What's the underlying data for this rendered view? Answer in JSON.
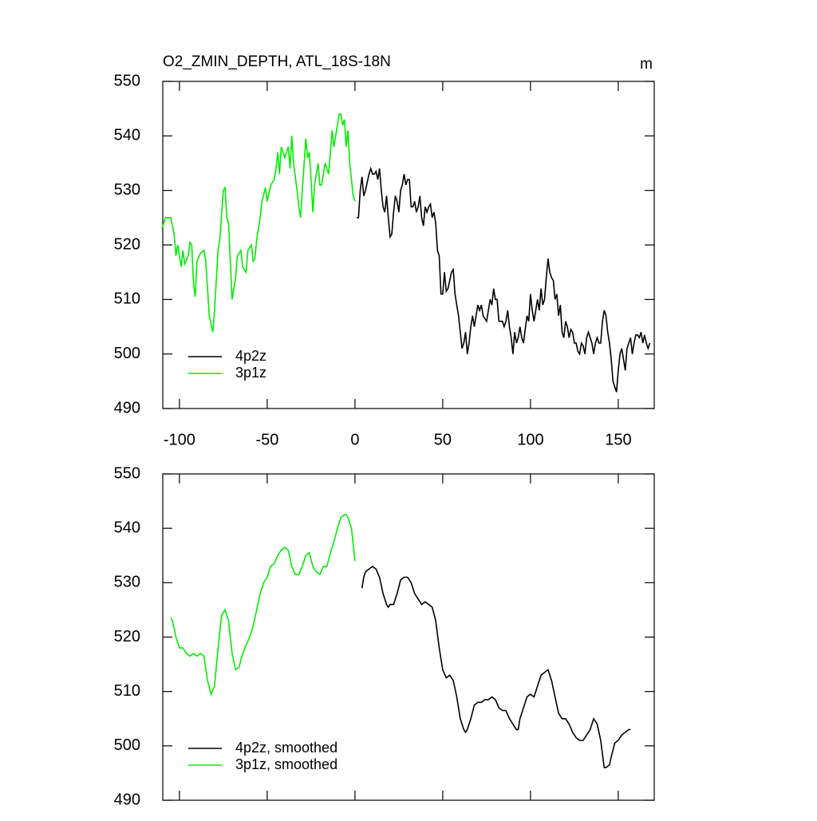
{
  "chart_data": [
    {
      "type": "line",
      "title": "O2_ZMIN_DEPTH, ATL_18S-18N",
      "units": "m",
      "xlim": [
        -109.5,
        170.5
      ],
      "xticks": [
        -100,
        -50,
        0,
        50,
        100,
        150
      ],
      "xtick_labels": true,
      "ylim": [
        490,
        550
      ],
      "yticks": [
        490,
        500,
        510,
        520,
        530,
        540,
        550
      ],
      "legend": "lower left",
      "series": [
        {
          "name": "4p2z",
          "color": "#000000",
          "x": [
            1,
            2,
            3,
            4,
            5,
            6,
            8,
            9,
            10,
            11,
            12,
            13,
            14,
            15,
            16,
            17,
            18,
            19,
            20,
            21,
            22,
            23,
            24,
            25,
            26,
            27,
            28,
            29,
            30,
            31,
            32,
            33,
            34,
            35,
            36,
            37,
            38,
            39,
            40,
            41,
            42,
            43,
            44,
            45,
            46,
            47,
            48,
            49,
            50,
            51,
            52,
            53,
            55,
            56,
            57,
            58,
            59,
            60,
            61,
            62,
            63,
            64,
            65,
            66,
            67,
            68,
            69,
            70,
            71,
            72,
            73,
            75,
            76,
            77,
            78,
            79,
            80,
            81,
            82,
            84,
            85,
            86,
            87,
            88,
            89,
            90,
            91,
            92,
            93,
            94,
            95,
            96,
            98,
            99,
            100,
            101,
            102,
            103,
            104,
            105,
            106,
            107,
            108,
            109,
            110,
            111,
            112,
            113,
            114,
            115,
            116,
            117,
            118,
            119,
            120,
            121,
            122,
            123,
            124,
            125,
            126,
            127,
            128,
            129,
            130,
            131,
            132,
            133,
            134,
            135,
            136,
            137,
            138,
            139,
            140,
            141,
            142,
            143,
            144,
            145,
            146,
            147,
            148,
            149,
            150,
            151,
            152,
            153,
            154,
            155,
            156,
            157,
            158,
            159,
            160,
            161,
            162,
            163,
            164,
            165,
            166,
            167,
            168
          ],
          "values": [
            525,
            525,
            530,
            532.5,
            529,
            530,
            533,
            534,
            533,
            533,
            533.5,
            532,
            534,
            530,
            527,
            526,
            529,
            525,
            521.5,
            522,
            526,
            529,
            528,
            526,
            530,
            531,
            533,
            531,
            532,
            532,
            527,
            527,
            528,
            526,
            527,
            529,
            525,
            523.5,
            527,
            526,
            527,
            527.5,
            525,
            526,
            524,
            519,
            518,
            511,
            511,
            515,
            511.5,
            512,
            515,
            515.5,
            511,
            509,
            507,
            504,
            501,
            502,
            504,
            500,
            502,
            505,
            507,
            505,
            507,
            509,
            508,
            509,
            507,
            506,
            508,
            510,
            509,
            512,
            510,
            510,
            506,
            506,
            505,
            506,
            508,
            505,
            503,
            500,
            504,
            502,
            503,
            505,
            503,
            502,
            507,
            506,
            511,
            508,
            506,
            508,
            510,
            508,
            512,
            509,
            510,
            514,
            517.5,
            515,
            514,
            513.5,
            510,
            511,
            507,
            509,
            504,
            503,
            506,
            505,
            503,
            504.5,
            504,
            502,
            502,
            500.5,
            500,
            502,
            501.5,
            500,
            503,
            504,
            503,
            502,
            500,
            502,
            503,
            502,
            502,
            506,
            508,
            507,
            504,
            502,
            499,
            495,
            494,
            493,
            497,
            500,
            501,
            499,
            497,
            501,
            502,
            503,
            500,
            502,
            503.5,
            503.5,
            503,
            504,
            502,
            503.5,
            502,
            501,
            502
          ]
        },
        {
          "name": "3p1z",
          "color": "#00ee00",
          "x": [
            -110,
            -108,
            -105,
            -103,
            -102,
            -101,
            -99,
            -98,
            -97,
            -95,
            -94,
            -93,
            -92,
            -91,
            -90,
            -88,
            -86,
            -85,
            -83,
            -81,
            -80,
            -78,
            -77,
            -75,
            -74,
            -73,
            -72,
            -70,
            -68,
            -67,
            -65,
            -64,
            -62,
            -61,
            -59,
            -58,
            -57,
            -56,
            -54,
            -53,
            -51,
            -50,
            -48,
            -46,
            -45,
            -44,
            -43,
            -42,
            -40,
            -38,
            -37,
            -36,
            -35,
            -33,
            -32,
            -31,
            -30,
            -28,
            -27,
            -26,
            -25,
            -24,
            -23,
            -21,
            -20,
            -19,
            -17,
            -16,
            -15,
            -13,
            -12,
            -10,
            -9,
            -8,
            -7,
            -6,
            -5,
            -4,
            -3,
            -2,
            -1,
            0
          ],
          "values": [
            523,
            525,
            525,
            522,
            518,
            520,
            516,
            519,
            516.5,
            518,
            520.5,
            520,
            513,
            510.5,
            517,
            518.5,
            519,
            517,
            507,
            504,
            508,
            519,
            521,
            530,
            530.5,
            525,
            524,
            510,
            514,
            518,
            519,
            516,
            515,
            519,
            520,
            517,
            517.5,
            521,
            525,
            528,
            530.5,
            528,
            531,
            532,
            534,
            537,
            533,
            538,
            536,
            538,
            534,
            540,
            535,
            530,
            527,
            525,
            530,
            539.5,
            536,
            537,
            532,
            526,
            531,
            535,
            531,
            531,
            535,
            534,
            533,
            541,
            538,
            542,
            544,
            544,
            542,
            543,
            538,
            541,
            535,
            532,
            529,
            528
          ]
        }
      ]
    },
    {
      "type": "line",
      "xlim": [
        -109.5,
        170.5
      ],
      "xticks": [
        -100,
        -50,
        0,
        50,
        100,
        150
      ],
      "xtick_labels": false,
      "ylim": [
        490,
        550
      ],
      "yticks": [
        490,
        500,
        510,
        520,
        530,
        540,
        550
      ],
      "legend": "lower left",
      "series": [
        {
          "name": "4p2z, smoothed",
          "color": "#000000",
          "x": [
            4,
            5,
            6,
            8,
            10,
            12,
            14,
            16,
            18,
            19,
            20,
            22,
            24,
            26,
            28,
            30,
            32,
            34,
            36,
            38,
            40,
            42,
            44,
            46,
            48,
            50,
            52,
            54,
            56,
            58,
            60,
            62,
            63,
            64,
            66,
            68,
            70,
            72,
            74,
            76,
            78,
            80,
            82,
            84,
            86,
            88,
            90,
            92,
            93,
            94,
            96,
            98,
            100,
            102,
            104,
            106,
            108,
            110,
            112,
            114,
            116,
            118,
            120,
            122,
            124,
            126,
            128,
            130,
            132,
            134,
            136,
            138,
            140,
            142,
            143,
            145,
            146,
            148,
            150,
            152,
            154,
            156,
            157
          ],
          "values": [
            529,
            531,
            532,
            532.5,
            533,
            532.5,
            531,
            528,
            526,
            525.5,
            526,
            526,
            528,
            530.5,
            531,
            531,
            530,
            528,
            527,
            526,
            526.5,
            526,
            525.5,
            523,
            518,
            514,
            512.5,
            513,
            512,
            509,
            505,
            503,
            502.5,
            503,
            505,
            507.5,
            508,
            508,
            508.5,
            508.5,
            509,
            508.5,
            507,
            506.5,
            506.5,
            505,
            504,
            503,
            503,
            505,
            507,
            509,
            509.5,
            509,
            511,
            513,
            513.5,
            514,
            512,
            509,
            506,
            505,
            505,
            504,
            502.5,
            501.5,
            501,
            501,
            502,
            503,
            505,
            504,
            501,
            496,
            496,
            496.5,
            498,
            500.5,
            501,
            502,
            502.5,
            503,
            503
          ]
        },
        {
          "name": "3p1z, smoothed",
          "color": "#00ee00",
          "x": [
            -105,
            -104,
            -102,
            -100,
            -98,
            -96,
            -94,
            -92,
            -90,
            -88,
            -86,
            -84,
            -82,
            -80,
            -78,
            -76,
            -74,
            -72,
            -70,
            -68,
            -66,
            -64,
            -62,
            -60,
            -58,
            -56,
            -54,
            -52,
            -50,
            -48,
            -46,
            -44,
            -42,
            -40,
            -38,
            -36,
            -34,
            -32,
            -30,
            -28,
            -26,
            -24,
            -22,
            -20,
            -18,
            -16,
            -14,
            -12,
            -10,
            -8,
            -6,
            -5,
            -4,
            -2,
            -1,
            0
          ],
          "values": [
            523.5,
            523,
            520,
            518,
            518,
            517,
            516.5,
            517,
            516.5,
            517,
            516.5,
            512,
            509.5,
            511,
            518,
            524,
            525,
            523,
            517,
            514,
            514.5,
            517,
            518.5,
            520,
            522,
            525,
            528,
            530,
            531,
            533,
            533.5,
            535,
            536,
            536.5,
            536,
            533,
            531.5,
            531.5,
            533,
            535,
            535.5,
            533,
            532,
            531.5,
            533,
            533,
            535.5,
            537.5,
            540,
            542,
            542.5,
            542.5,
            542,
            540,
            537,
            534
          ]
        }
      ]
    }
  ]
}
